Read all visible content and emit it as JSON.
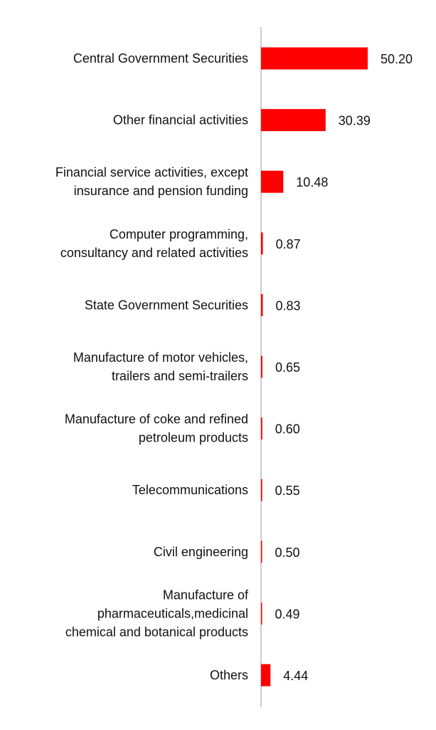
{
  "chart_data": {
    "type": "bar",
    "orientation": "horizontal",
    "categories": [
      [
        "Central Government Securities"
      ],
      [
        "Other financial activities"
      ],
      [
        "Financial service activities, except",
        "insurance and pension funding"
      ],
      [
        "Computer programming,",
        "consultancy and related activities"
      ],
      [
        "State Government Securities"
      ],
      [
        "Manufacture of motor vehicles,",
        "trailers and semi-trailers"
      ],
      [
        "Manufacture of coke and refined",
        "petroleum products"
      ],
      [
        "Telecommunications"
      ],
      [
        "Civil engineering"
      ],
      [
        "Manufacture of",
        "pharmaceuticals,medicinal",
        "chemical and botanical products"
      ],
      [
        "Others"
      ]
    ],
    "values": [
      50.2,
      30.39,
      10.48,
      0.87,
      0.83,
      0.65,
      0.6,
      0.55,
      0.5,
      0.49,
      4.44
    ],
    "value_labels": [
      "50.20",
      "30.39",
      "10.48",
      "0.87",
      "0.83",
      "0.65",
      "0.60",
      "0.55",
      "0.50",
      "0.49",
      "4.44"
    ],
    "xlim": [
      0,
      50.2
    ],
    "bar_color": "#ff0000",
    "axis_color": "#cccccc",
    "grid": false,
    "legend": "none"
  }
}
